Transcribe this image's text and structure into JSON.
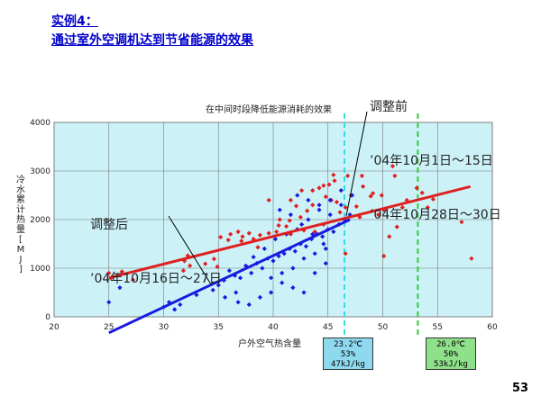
{
  "slide": {
    "title": "实例4：",
    "subtitle": "通过室外空调机达到节省能源的效果",
    "page_number": "53"
  },
  "annotations": {
    "before_lines": [
      "调整前",
      "’04年10月1日～15日",
      "’04年10月28日～30日"
    ],
    "after_lines": [
      "调整后",
      "’04年10月16日～27日"
    ],
    "middle": "在中间时段降低能源消耗的效果"
  },
  "conditions": {
    "left": [
      "23.2℃",
      "53%",
      "47kJ/kg"
    ],
    "right": [
      "26.0℃",
      "50%",
      "53kJ/kg"
    ]
  },
  "colors": {
    "plot_bg": "#ccf2f8",
    "before": "#e02020",
    "after": "#1a1ae0",
    "cyan_line": "#33dddd",
    "green_line": "#33cc33"
  },
  "chart_data": {
    "type": "scatter",
    "xlabel": "户外空气热含量",
    "ylabel": "冷水累计热量[MJ]",
    "xlim": [
      20,
      60
    ],
    "ylim": [
      0,
      4000
    ],
    "xticks": [
      20,
      25,
      30,
      35,
      40,
      45,
      50,
      55,
      60
    ],
    "yticks": [
      0,
      1000,
      2000,
      3000,
      4000
    ],
    "grid": true,
    "reference_lines": [
      {
        "x": 46.5,
        "color": "#33dddd"
      },
      {
        "x": 53.2,
        "color": "#33cc33"
      }
    ],
    "series": [
      {
        "color": "#e02020",
        "marker": "diamond",
        "points": [
          [
            25,
            900
          ],
          [
            25.2,
            800
          ],
          [
            26.2,
            930
          ],
          [
            27.2,
            760
          ],
          [
            31.8,
            950
          ],
          [
            31.9,
            1150
          ],
          [
            32.2,
            1260
          ],
          [
            32.4,
            1050
          ],
          [
            33.8,
            1090
          ],
          [
            34.6,
            1190
          ],
          [
            34.9,
            1030
          ],
          [
            35.2,
            1640
          ],
          [
            35.9,
            1580
          ],
          [
            36.1,
            1700
          ],
          [
            36.8,
            1750
          ],
          [
            37.2,
            1650
          ],
          [
            37.8,
            1720
          ],
          [
            38.2,
            1600
          ],
          [
            38.8,
            1680
          ],
          [
            39.6,
            1720
          ],
          [
            40.3,
            1750
          ],
          [
            40.5,
            1880
          ],
          [
            41.2,
            1860
          ],
          [
            41.5,
            1980
          ],
          [
            41.6,
            1700
          ],
          [
            42.1,
            2280
          ],
          [
            42.5,
            2050
          ],
          [
            42.8,
            1780
          ],
          [
            43.1,
            2180
          ],
          [
            43.6,
            2300
          ],
          [
            43.8,
            1750
          ],
          [
            44.2,
            2650
          ],
          [
            44.6,
            1900
          ],
          [
            44.8,
            2470
          ],
          [
            45.1,
            2720
          ],
          [
            45.3,
            2400
          ],
          [
            45.5,
            2920
          ],
          [
            45.8,
            2360
          ],
          [
            46.1,
            2150
          ],
          [
            46.6,
            2250
          ],
          [
            46.8,
            2900
          ],
          [
            47.6,
            2270
          ],
          [
            47.9,
            2050
          ],
          [
            48.2,
            2680
          ],
          [
            48.9,
            2480
          ],
          [
            49.1,
            2540
          ],
          [
            49.9,
            2500
          ],
          [
            50.1,
            1250
          ],
          [
            50.6,
            1650
          ],
          [
            50.9,
            3100
          ],
          [
            51.1,
            2900
          ],
          [
            51.3,
            1850
          ],
          [
            51.8,
            2250
          ],
          [
            52.2,
            2400
          ],
          [
            53.1,
            2650
          ],
          [
            53.6,
            2550
          ],
          [
            54.1,
            2250
          ],
          [
            54.6,
            2420
          ],
          [
            57.2,
            1950
          ],
          [
            58.1,
            1200
          ],
          [
            37.1,
            1560
          ],
          [
            38.6,
            1430
          ],
          [
            39.6,
            2400
          ],
          [
            40.6,
            2000
          ],
          [
            41.6,
            2400
          ],
          [
            42.6,
            2600
          ],
          [
            43.6,
            2600
          ],
          [
            44.6,
            2700
          ],
          [
            45.6,
            2800
          ],
          [
            46.6,
            1300
          ],
          [
            47.1,
            2500
          ],
          [
            48.1,
            2900
          ],
          [
            49.6,
            2100
          ],
          [
            50.1,
            2200
          ]
        ]
      },
      {
        "color": "#1a1ae0",
        "marker": "diamond",
        "points": [
          [
            25,
            300
          ],
          [
            26,
            600
          ],
          [
            30,
            200
          ],
          [
            30.5,
            300
          ],
          [
            31,
            150
          ],
          [
            31.5,
            250
          ],
          [
            33,
            450
          ],
          [
            34.5,
            550
          ],
          [
            35,
            650
          ],
          [
            35.5,
            750
          ],
          [
            36,
            950
          ],
          [
            36.5,
            850
          ],
          [
            37,
            800
          ],
          [
            37.5,
            1050
          ],
          [
            38,
            900
          ],
          [
            38.5,
            1100
          ],
          [
            39,
            1000
          ],
          [
            39.5,
            1200
          ],
          [
            40,
            1150
          ],
          [
            40.5,
            1250
          ],
          [
            41,
            1300
          ],
          [
            41.5,
            1400
          ],
          [
            42,
            1350
          ],
          [
            42.5,
            1500
          ],
          [
            43,
            1450
          ],
          [
            43.5,
            1600
          ],
          [
            44,
            1700
          ],
          [
            44.5,
            1650
          ],
          [
            45,
            1800
          ],
          [
            45.5,
            1750
          ],
          [
            46,
            1900
          ],
          [
            46.5,
            2000
          ],
          [
            47,
            2100
          ],
          [
            38.2,
            1230
          ],
          [
            39.2,
            1400
          ],
          [
            40.2,
            1600
          ],
          [
            41.2,
            1700
          ],
          [
            42.2,
            1800
          ],
          [
            43.2,
            2000
          ],
          [
            44.2,
            2200
          ],
          [
            45.2,
            2400
          ],
          [
            46.2,
            2600
          ],
          [
            39.8,
            800
          ],
          [
            40.8,
            700
          ],
          [
            41.8,
            600
          ],
          [
            42.8,
            500
          ],
          [
            43.8,
            900
          ],
          [
            44.8,
            1100
          ],
          [
            36.8,
            300
          ],
          [
            37.8,
            250
          ],
          [
            38.8,
            400
          ],
          [
            39.8,
            500
          ],
          [
            40.8,
            900
          ],
          [
            41.8,
            1000
          ],
          [
            42.8,
            1200
          ],
          [
            43.8,
            1300
          ],
          [
            44.8,
            1400
          ],
          [
            42.2,
            2500
          ],
          [
            43.2,
            2400
          ],
          [
            44.2,
            2300
          ],
          [
            45.2,
            2100
          ],
          [
            46.2,
            2300
          ],
          [
            47.2,
            2500
          ],
          [
            40.6,
            2200
          ],
          [
            41.6,
            2100
          ],
          [
            42.6,
            1900
          ],
          [
            43.6,
            1700
          ],
          [
            44.6,
            1500
          ],
          [
            35.6,
            400
          ],
          [
            36.6,
            500
          ]
        ]
      }
    ],
    "trendlines": [
      {
        "color": "#e02020",
        "from": [
          25,
          800
        ],
        "to": [
          58,
          2680
        ]
      },
      {
        "color": "#1a1ae0",
        "from": [
          25,
          -330
        ],
        "to": [
          47,
          2000
        ]
      }
    ]
  }
}
